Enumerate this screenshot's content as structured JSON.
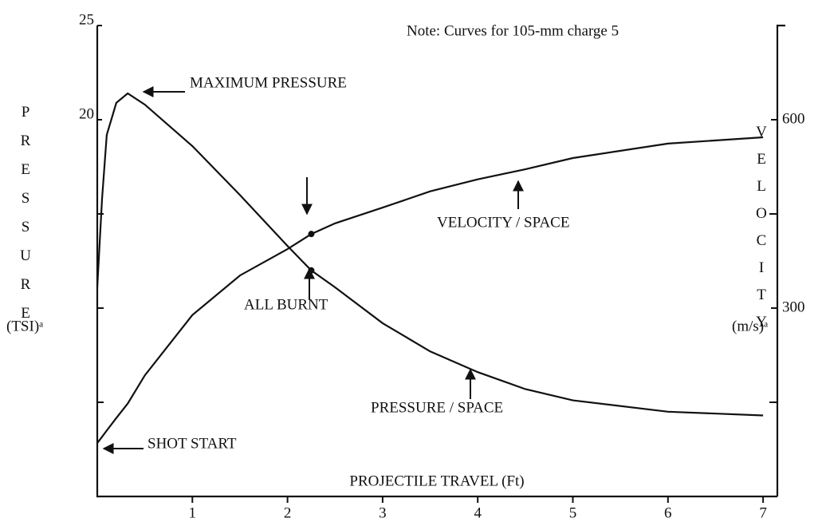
{
  "chart_data": {
    "type": "line",
    "note": "Note: Curves for 105-mm charge 5",
    "xlabel": "PROJECTILE TRAVEL (Ft)",
    "ylabel": "PRESSURE",
    "yunit": "(TSI)ᵃ",
    "y2label": "VELOCITY",
    "y2unit": "(m/s)ᵃ",
    "x": [
      0,
      0.05,
      0.1,
      0.2,
      0.32,
      0.5,
      1,
      1.5,
      2,
      2.25,
      2.5,
      3,
      3.5,
      4,
      4.5,
      5,
      6,
      7
    ],
    "series": [
      {
        "name": "PRESSURE / SPACE",
        "color": "#111111",
        "values": [
          11.1,
          15.8,
          19.2,
          20.9,
          21.4,
          20.8,
          18.6,
          16.0,
          13.3,
          12.0,
          11.1,
          9.2,
          7.7,
          6.6,
          5.7,
          5.1,
          4.5,
          4.3
        ]
      },
      {
        "name": "VELOCITY / SPACE",
        "color": "#111111",
        "axis": "y2",
        "values": [
          85,
          95,
          105,
          125,
          148,
          193,
          289,
          352,
          394,
          418,
          435,
          460,
          486,
          505,
          521,
          539,
          562,
          572
        ]
      }
    ],
    "annotations": [
      {
        "text": "MAXIMUM PRESSURE"
      },
      {
        "text": "VELOCITY / SPACE"
      },
      {
        "text": "ALL BURNT",
        "x": 2.25
      },
      {
        "text": "PRESSURE / SPACE"
      },
      {
        "text": "SHOT START"
      }
    ],
    "xlim": [
      0,
      7.15
    ],
    "xticks": [
      1,
      2,
      3,
      4,
      5,
      6,
      7
    ],
    "ylim": [
      0,
      25
    ],
    "yticks": [
      20,
      25
    ],
    "yminor_ticks": [
      5,
      10,
      15
    ],
    "y2lim": [
      0,
      750
    ],
    "y2ticks": [
      300,
      600
    ],
    "y2minor_ticks": [
      150,
      450
    ]
  }
}
